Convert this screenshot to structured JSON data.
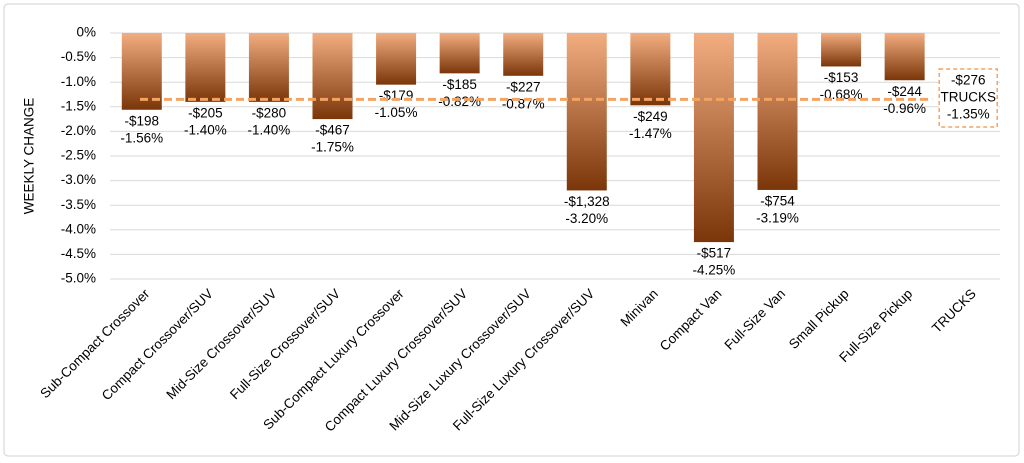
{
  "chart_data": {
    "type": "bar",
    "y_label": "WEEKLY CHANGE",
    "categories": [
      "Sub-Compact Crossover",
      "Compact Crossover/SUV",
      "Mid-Size Crossover/SUV",
      "Full-Size Crossover/SUV",
      "Sub-Compact Luxury Crossover",
      "Compact Luxury Crossover/SUV",
      "Mid-Size Luxury Crossover/SUV",
      "Full-Size Luxury Crossover/SUV",
      "Minivan",
      "Compact Van",
      "Full-Size Van",
      "Small Pickup",
      "Full-Size Pickup",
      "TRUCKS"
    ],
    "values": [
      -1.56,
      -1.4,
      -1.4,
      -1.75,
      -1.05,
      -0.82,
      -0.87,
      -3.2,
      -1.47,
      -4.25,
      -3.19,
      -0.68,
      -0.96,
      null
    ],
    "value_labels": [
      "-1.56%",
      "-1.40%",
      "-1.40%",
      "-1.75%",
      "-1.05%",
      "-0.82%",
      "-0.87%",
      "-3.20%",
      "-1.47%",
      "-4.25%",
      "-3.19%",
      "-0.68%",
      "-0.96%",
      null
    ],
    "dollar_labels": [
      "-$198",
      "-$205",
      "-$280",
      "-$467",
      "-$179",
      "-$185",
      "-$227",
      "-$1,328",
      "-$249",
      "-$517",
      "-$754",
      "-$153",
      "-$244",
      null
    ],
    "reference_line": {
      "name": "TRUCKS",
      "value": -1.35,
      "value_label": "-1.35%",
      "dollar_label": "-$276",
      "color": "#f4a460"
    },
    "color_top": "#f2ae80",
    "color_bottom": "#7a3608",
    "ylim": [
      -5,
      0
    ],
    "yticks": [
      {
        "value": 0,
        "label": "0%"
      },
      {
        "value": -0.5,
        "label": "-0.5%"
      },
      {
        "value": -1,
        "label": "-1.0%"
      },
      {
        "value": -1.5,
        "label": "-1.5%"
      },
      {
        "value": -2,
        "label": "-2.0%"
      },
      {
        "value": -2.5,
        "label": "-2.5%"
      },
      {
        "value": -3,
        "label": "-3.0%"
      },
      {
        "value": -3.5,
        "label": "-3.5%"
      },
      {
        "value": -4,
        "label": "-4.0%"
      },
      {
        "value": -4.5,
        "label": "-4.5%"
      },
      {
        "value": -5,
        "label": "-5.0%"
      }
    ],
    "grid": true
  }
}
